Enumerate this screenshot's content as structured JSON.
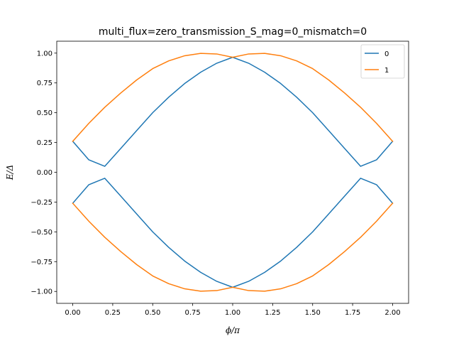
{
  "chart_data": {
    "type": "line",
    "title": "multi_flux=zero_transmission_S_mag=0_mismatch=0",
    "xlabel": "ϕ/π",
    "ylabel": "E/Δ",
    "xlim": [
      -0.1,
      2.1
    ],
    "ylim": [
      -1.1,
      1.1
    ],
    "xticks": [
      "0.00",
      "0.25",
      "0.50",
      "0.75",
      "1.00",
      "1.25",
      "1.50",
      "1.75",
      "2.00"
    ],
    "yticks": [
      "−1.00",
      "−0.75",
      "−0.50",
      "−0.25",
      "0.00",
      "0.25",
      "0.50",
      "0.75",
      "1.00"
    ],
    "grid": false,
    "legend_position": "top-right",
    "x": [
      0.0,
      0.1,
      0.2,
      0.3,
      0.4,
      0.5,
      0.6,
      0.7,
      0.8,
      0.9,
      1.0,
      1.1,
      1.2,
      1.3,
      1.4,
      1.5,
      1.6,
      1.7,
      1.8,
      1.9,
      2.0
    ],
    "series": [
      {
        "name": "0",
        "color": "#1f77b4",
        "branches": [
          [
            0.26,
            0.105,
            0.05,
            0.2,
            0.35,
            0.5,
            0.63,
            0.745,
            0.84,
            0.915,
            0.965,
            0.915,
            0.84,
            0.745,
            0.63,
            0.5,
            0.35,
            0.2,
            0.05,
            0.105,
            0.26
          ],
          [
            -0.26,
            -0.105,
            -0.05,
            -0.2,
            -0.35,
            -0.5,
            -0.63,
            -0.745,
            -0.84,
            -0.915,
            -0.965,
            -0.915,
            -0.84,
            -0.745,
            -0.63,
            -0.5,
            -0.35,
            -0.2,
            -0.05,
            -0.105,
            -0.26
          ]
        ]
      },
      {
        "name": "1",
        "color": "#ff7f0e",
        "branches": [
          [
            0.26,
            0.41,
            0.545,
            0.665,
            0.775,
            0.87,
            0.935,
            0.978,
            0.998,
            0.993,
            0.965,
            0.993,
            0.998,
            0.978,
            0.935,
            0.87,
            0.775,
            0.665,
            0.545,
            0.41,
            0.26
          ],
          [
            -0.26,
            -0.41,
            -0.545,
            -0.665,
            -0.775,
            -0.87,
            -0.935,
            -0.978,
            -0.998,
            -0.993,
            -0.965,
            -0.993,
            -0.998,
            -0.978,
            -0.935,
            -0.87,
            -0.775,
            -0.665,
            -0.545,
            -0.41,
            -0.26
          ]
        ]
      }
    ]
  }
}
